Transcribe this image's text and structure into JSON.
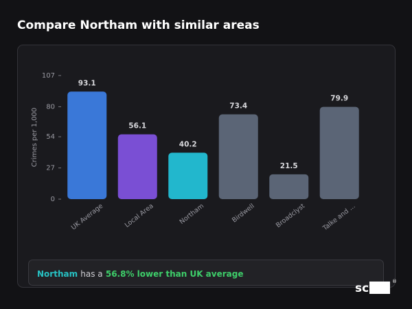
{
  "header": {
    "title": "Compare Northam with similar areas"
  },
  "chart_data": {
    "type": "bar",
    "y_label": "Crimes per 1,000",
    "categories": [
      "UK Average",
      "Local Area",
      "Northam",
      "Birdwell",
      "Broadclyst",
      "Talke and ..."
    ],
    "values": [
      93.1,
      56.1,
      40.2,
      73.4,
      21.5,
      79.9
    ],
    "colors": [
      "#3a78d8",
      "#7a4fd4",
      "#22b7cd",
      "#5b6576",
      "#5b6576",
      "#5b6576"
    ],
    "ylim": [
      0,
      107
    ],
    "yticks": [
      0,
      27,
      54,
      80,
      107
    ],
    "grid": false
  },
  "summary": {
    "area": "Northam",
    "text": "has a",
    "highlight": "56.8% lower than UK average"
  },
  "logo": {
    "text": "scOS",
    "mark": "®"
  }
}
